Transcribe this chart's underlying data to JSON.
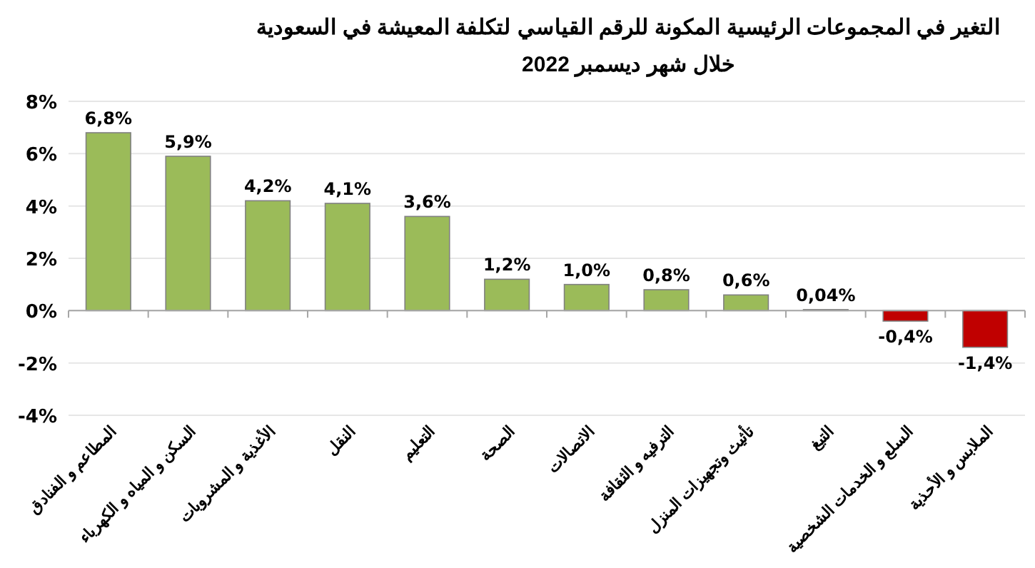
{
  "chart_data": {
    "type": "bar",
    "title": "التغير في المجموعات الرئيسية المكونة للرقم القياسي لتكلفة المعيشة في السعودية",
    "subtitle": "خلال شهر ديسمبر 2022",
    "categories": [
      "المطاعم و الفنادق",
      "السكن و المياه و الكهرباء",
      "الأغذية و المشروبات",
      "النقل",
      "التعليم",
      "الصحة",
      "الاتصالات",
      "الترفيه و الثقافة",
      "تأثيث وتجهيزات المنزل",
      "التبغ",
      "السلع و الخدمات الشخصية",
      "الملابس و الأحذية"
    ],
    "values": [
      6.8,
      5.9,
      4.2,
      4.1,
      3.6,
      1.2,
      1.0,
      0.8,
      0.6,
      0.04,
      -0.4,
      -1.4
    ],
    "value_labels": [
      "6,8%",
      "5,9%",
      "4,2%",
      "4,1%",
      "3,6%",
      "1,2%",
      "1,0%",
      "0,8%",
      "0,6%",
      "0,04%",
      "-0,4%",
      "-1,4%"
    ],
    "colors": [
      "#9bbb59",
      "#9bbb59",
      "#9bbb59",
      "#9bbb59",
      "#9bbb59",
      "#9bbb59",
      "#9bbb59",
      "#9bbb59",
      "#9bbb59",
      "#9bbb59",
      "#c00000",
      "#c00000"
    ],
    "ylim": [
      -4,
      8
    ],
    "yticks": [
      {
        "value": -4,
        "label": "-4%"
      },
      {
        "value": -2,
        "label": "-2%"
      },
      {
        "value": 0,
        "label": "0%"
      },
      {
        "value": 2,
        "label": "2%"
      },
      {
        "value": 4,
        "label": "4%"
      },
      {
        "value": 6,
        "label": "6%"
      },
      {
        "value": 8,
        "label": "8%"
      }
    ],
    "grid": "y"
  }
}
